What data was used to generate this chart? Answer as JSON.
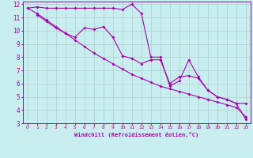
{
  "xlabel": "Windchill (Refroidissement éolien,°C)",
  "bg_color": "#c8eef0",
  "line_color": "#aa00aa",
  "grid_color": "#b0ccc8",
  "xlim": [
    -0.5,
    23.5
  ],
  "ylim": [
    3,
    12.2
  ],
  "yticks": [
    3,
    4,
    5,
    6,
    7,
    8,
    9,
    10,
    11,
    12
  ],
  "xticks": [
    0,
    1,
    2,
    3,
    4,
    5,
    6,
    7,
    8,
    9,
    10,
    11,
    12,
    13,
    14,
    15,
    16,
    17,
    18,
    19,
    20,
    21,
    22,
    23
  ],
  "series1_x": [
    0,
    1,
    2,
    3,
    4,
    5,
    6,
    7,
    8,
    9,
    10,
    11,
    12,
    13,
    14,
    15,
    16,
    17,
    18,
    19,
    20,
    21,
    22,
    23
  ],
  "series1_y": [
    11.7,
    11.8,
    11.7,
    11.7,
    11.7,
    11.7,
    11.7,
    11.7,
    11.7,
    11.7,
    11.6,
    12.0,
    11.3,
    8.0,
    8.0,
    5.8,
    6.2,
    7.8,
    6.5,
    5.5,
    5.0,
    4.8,
    4.5,
    3.3
  ],
  "series2_x": [
    1,
    2,
    3,
    4,
    5,
    6,
    7,
    8,
    9,
    10,
    11,
    12,
    13,
    14,
    15,
    16,
    17,
    18,
    19,
    20,
    21,
    22,
    23
  ],
  "series2_y": [
    11.2,
    10.7,
    10.2,
    9.8,
    9.5,
    10.2,
    10.1,
    10.3,
    9.5,
    8.1,
    7.9,
    7.5,
    7.8,
    7.8,
    6.0,
    6.5,
    6.6,
    6.4,
    5.5,
    5.0,
    4.8,
    4.5,
    4.5
  ],
  "series3_x": [
    0,
    1,
    2,
    3,
    4,
    5,
    6,
    7,
    8,
    9,
    10,
    11,
    12,
    13,
    14,
    15,
    16,
    17,
    18,
    19,
    20,
    21,
    22,
    23
  ],
  "series3_y": [
    11.7,
    11.3,
    10.8,
    10.3,
    9.8,
    9.3,
    8.8,
    8.3,
    7.9,
    7.5,
    7.1,
    6.7,
    6.4,
    6.1,
    5.8,
    5.6,
    5.4,
    5.2,
    5.0,
    4.8,
    4.6,
    4.4,
    4.2,
    3.5
  ]
}
